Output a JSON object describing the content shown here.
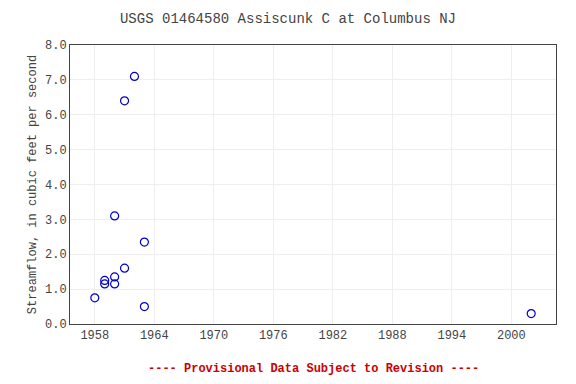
{
  "chart_data": {
    "type": "scatter",
    "title": "USGS 01464580 Assiscunk C at Columbus NJ",
    "ylabel": "Streamflow, in cubic feet per second",
    "x": [
      1958,
      1959,
      1959,
      1960,
      1960,
      1960,
      1961,
      1961,
      1962,
      1963,
      1963,
      2002
    ],
    "values": [
      0.75,
      1.25,
      1.15,
      1.35,
      1.15,
      3.1,
      6.4,
      1.6,
      7.1,
      2.35,
      0.5,
      0.3
    ],
    "color": "#0000cc",
    "marker": "open circle",
    "xlim": [
      1955.5,
      2004.5
    ],
    "ylim": [
      0.0,
      8.0
    ],
    "xticks": [
      1958,
      1964,
      1970,
      1976,
      1982,
      1988,
      1994,
      2000
    ],
    "yticks": [
      {
        "value": 0,
        "label": "0.0"
      },
      {
        "value": 1,
        "label": "1.0"
      },
      {
        "value": 2,
        "label": "2.0"
      },
      {
        "value": 3,
        "label": "3.0"
      },
      {
        "value": 4,
        "label": "4.0"
      },
      {
        "value": 5,
        "label": "5.0"
      },
      {
        "value": 6,
        "label": "6.0"
      },
      {
        "value": 7,
        "label": "7.0"
      },
      {
        "value": 8,
        "label": "8.0"
      }
    ],
    "grid": true,
    "annotations": [
      {
        "text": "---- Provisional Data Subject to Revision ----",
        "color": "#cc0000"
      }
    ]
  }
}
